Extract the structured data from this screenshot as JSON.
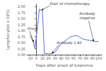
{
  "chart_data": {
    "type": "line",
    "x": [
      -10,
      -5,
      -2,
      5,
      10,
      13,
      20,
      25,
      30,
      40,
      55,
      65,
      75,
      85,
      95,
      100
    ],
    "values": [
      0.8,
      0.55,
      0.25,
      1.9,
      1.8,
      0.05,
      0.05,
      0.05,
      0.1,
      0.45,
      0.75,
      0.8,
      0.65,
      0.6,
      0.55,
      0.55
    ],
    "xlim": [
      -15,
      105
    ],
    "ylim": [
      0.0,
      2.1
    ],
    "xticks": [
      -10,
      0,
      10,
      20,
      30,
      40,
      50,
      60,
      70,
      80,
      90,
      100
    ],
    "yticks": [
      {
        "value": 0,
        "label": "0.00"
      },
      0.25,
      {
        "value": 0.5,
        "label": "0.50"
      },
      0.75,
      {
        "value": 1,
        "label": "1.00"
      },
      1.25,
      {
        "value": 1.5,
        "label": "1.50"
      },
      1.75,
      {
        "value": 2,
        "label": "2.00"
      }
    ],
    "xlabel": "Days after onset of tularemia",
    "ylabel": "Lymphocytes x 10³/L",
    "grid": false,
    "annotations": [
      {
        "text": "Onset",
        "x": -4,
        "y": 0.52
      },
      {
        "text": "Start of chemotherapy",
        "x": 8,
        "y": 1.85
      },
      {
        "text": "Antibody 1:40",
        "x": 25,
        "y": 0.05
      },
      {
        "text": "Antibody\nnegative",
        "x": 92,
        "y": 0.55
      }
    ]
  }
}
